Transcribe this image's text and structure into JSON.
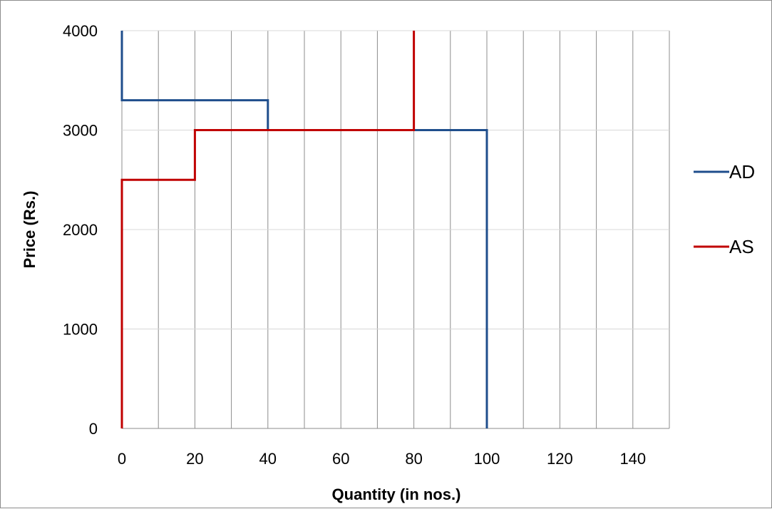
{
  "chart_data": {
    "type": "line",
    "title": "",
    "xlabel": "Quantity (in nos.)",
    "ylabel": "Price (Rs.)",
    "xlim": [
      0,
      150
    ],
    "ylim": [
      0,
      4000
    ],
    "x_ticks": [
      0,
      20,
      40,
      60,
      80,
      100,
      120,
      140
    ],
    "x_minor_step": 10,
    "y_ticks": [
      0,
      1000,
      2000,
      3000,
      4000
    ],
    "grid": true,
    "legend_position": "right",
    "series": [
      {
        "name": "AD",
        "color": "#1F4E8C",
        "points": [
          [
            0,
            4000
          ],
          [
            0,
            3300
          ],
          [
            40,
            3300
          ],
          [
            40,
            3000
          ],
          [
            100,
            3000
          ],
          [
            100,
            0
          ]
        ]
      },
      {
        "name": "AS",
        "color": "#C00000",
        "points": [
          [
            0,
            0
          ],
          [
            0,
            2500
          ],
          [
            20,
            2500
          ],
          [
            20,
            3000
          ],
          [
            80,
            3000
          ],
          [
            80,
            4000
          ]
        ]
      }
    ]
  }
}
